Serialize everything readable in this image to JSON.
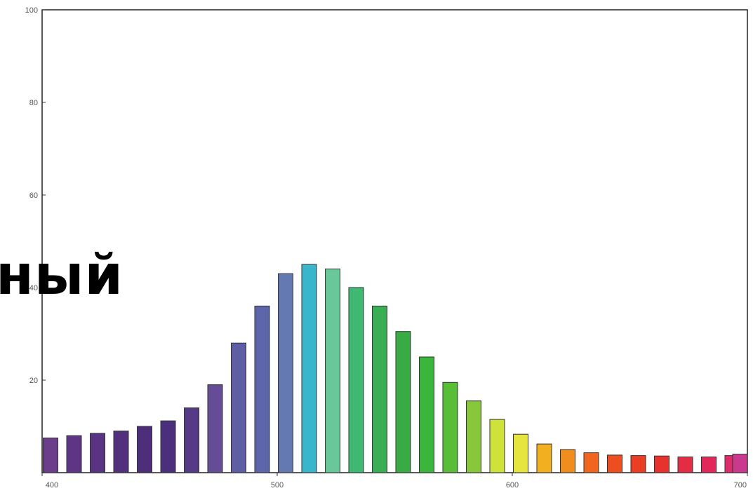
{
  "overlay_text": "ный",
  "chart_data": {
    "type": "bar",
    "xlabel": "",
    "ylabel": "",
    "xlim": [
      400,
      700
    ],
    "ylim": [
      0,
      100
    ],
    "x_ticks": [
      400,
      500,
      600,
      700
    ],
    "y_ticks": [
      20,
      40,
      60,
      80,
      100
    ],
    "x_tick_labels": [
      "400",
      "500",
      "600",
      "700"
    ],
    "y_tick_labels": [
      "20",
      "40",
      "60",
      "80",
      "100"
    ],
    "grid": false,
    "x": [
      400,
      410,
      420,
      430,
      440,
      450,
      460,
      470,
      480,
      490,
      500,
      510,
      520,
      530,
      540,
      550,
      560,
      570,
      580,
      590,
      600,
      610,
      620,
      630,
      640,
      650,
      660,
      670,
      680,
      690,
      700
    ],
    "values": [
      7.5,
      8,
      8.5,
      9,
      10,
      11.2,
      14,
      19,
      28,
      36,
      43,
      45,
      44,
      40,
      36,
      30.5,
      25,
      19.5,
      15.5,
      11.5,
      8.3,
      6.2,
      5,
      4.3,
      3.8,
      3.7,
      3.6,
      3.4,
      3.4,
      3.7,
      4
    ],
    "colors": [
      "#6b3d8a",
      "#5e3585",
      "#5a3482",
      "#53307e",
      "#4d2e7a",
      "#4b2f7c",
      "#553a88",
      "#644c96",
      "#5d5ea4",
      "#5c66a8",
      "#6478b2",
      "#3ab6cc",
      "#6ac79a",
      "#3fb873",
      "#3aae55",
      "#38ab45",
      "#3cb53c",
      "#58bd37",
      "#86c83a",
      "#cfe23b",
      "#e6e43f",
      "#f2b020",
      "#ef8e1d",
      "#f0661f",
      "#ec4e1f",
      "#ea3f25",
      "#e8322e",
      "#e42c44",
      "#e2285a",
      "#dd2b6c",
      "#c93a8e"
    ]
  }
}
